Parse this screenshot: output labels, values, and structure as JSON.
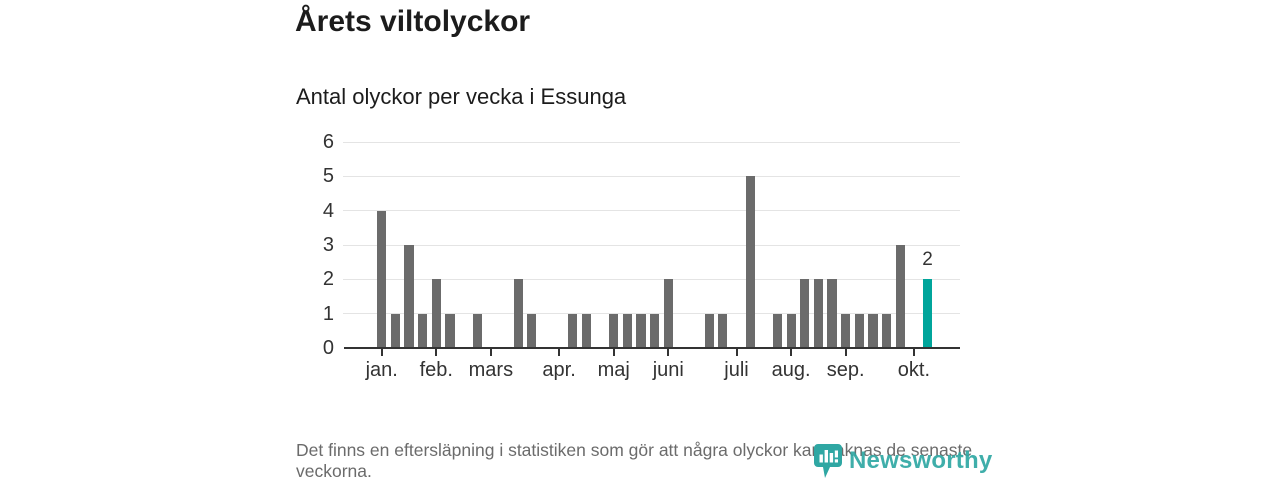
{
  "header": {
    "title": "Årets viltolyckor",
    "subtitle": "Antal olyckor per vecka i Essunga"
  },
  "chart_data": {
    "type": "bar",
    "title": "Årets viltolyckor",
    "subtitle": "Antal olyckor per vecka i Essunga",
    "x_unit": "week",
    "weeks_start": 1,
    "values": [
      4,
      1,
      3,
      1,
      2,
      1,
      0,
      1,
      0,
      0,
      2,
      1,
      0,
      0,
      1,
      1,
      0,
      1,
      1,
      1,
      1,
      2,
      0,
      0,
      1,
      1,
      0,
      5,
      0,
      1,
      1,
      2,
      2,
      2,
      1,
      1,
      1,
      1,
      3,
      0,
      2
    ],
    "y_ticks": [
      0,
      1,
      2,
      3,
      4,
      5,
      6
    ],
    "ylim": [
      0,
      6
    ],
    "grid": true,
    "legend": "none",
    "month_ticks": [
      {
        "label": "jan.",
        "week": 1
      },
      {
        "label": "feb.",
        "week": 5
      },
      {
        "label": "mars",
        "week": 9
      },
      {
        "label": "apr.",
        "week": 14
      },
      {
        "label": "maj",
        "week": 18
      },
      {
        "label": "juni",
        "week": 22
      },
      {
        "label": "juli",
        "week": 27
      },
      {
        "label": "aug.",
        "week": 31
      },
      {
        "label": "sep.",
        "week": 35
      },
      {
        "label": "okt.",
        "week": 40
      }
    ],
    "bar_color": "#6b6b6b",
    "highlight": {
      "week": 41,
      "value": 2,
      "label": "2",
      "color": "#00a59b"
    }
  },
  "footer": {
    "note": "Det finns en eftersläpning i statistiken som gör att några olyckor kan saknas de senaste veckorna."
  },
  "logo": {
    "text": "Newsworthy",
    "color": "#2fa7a3"
  }
}
